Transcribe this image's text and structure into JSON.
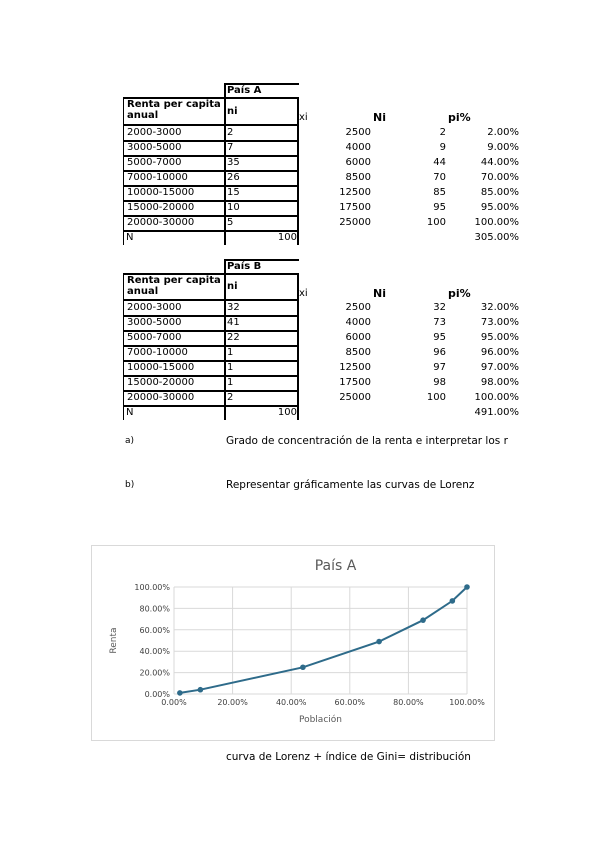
{
  "table_a": {
    "title": "País A",
    "header_col1": "Renta per capita anual",
    "header_ni": "ni",
    "header_xi": "xi",
    "header_Ni": "Ni",
    "header_pi": "pi%",
    "rows": [
      {
        "range": "2000-3000",
        "ni": "2",
        "xi": "2500",
        "Ni": "2",
        "pi": "2.00%"
      },
      {
        "range": "3000-5000",
        "ni": "7",
        "xi": "4000",
        "Ni": "9",
        "pi": "9.00%"
      },
      {
        "range": "5000-7000",
        "ni": "35",
        "xi": "6000",
        "Ni": "44",
        "pi": "44.00%"
      },
      {
        "range": "7000-10000",
        "ni": "26",
        "xi": "8500",
        "Ni": "70",
        "pi": "70.00%"
      },
      {
        "range": "10000-15000",
        "ni": "15",
        "xi": "12500",
        "Ni": "85",
        "pi": "85.00%"
      },
      {
        "range": "15000-20000",
        "ni": "10",
        "xi": "17500",
        "Ni": "95",
        "pi": "95.00%"
      },
      {
        "range": "20000-30000",
        "ni": "5",
        "xi": "25000",
        "Ni": "100",
        "pi": "100.00%"
      }
    ],
    "total_label": "N",
    "total_value": "100",
    "pi_total": "305.00%"
  },
  "table_b": {
    "title": "País B",
    "header_col1": "Renta per capita anual",
    "header_ni": "ni",
    "header_xi": "xi",
    "header_Ni": "Ni",
    "header_pi": "pi%",
    "rows": [
      {
        "range": "2000-3000",
        "ni": "32",
        "xi": "2500",
        "Ni": "32",
        "pi": "32.00%"
      },
      {
        "range": "3000-5000",
        "ni": "41",
        "xi": "4000",
        "Ni": "73",
        "pi": "73.00%"
      },
      {
        "range": "5000-7000",
        "ni": "22",
        "xi": "6000",
        "Ni": "95",
        "pi": "95.00%"
      },
      {
        "range": "7000-10000",
        "ni": "1",
        "xi": "8500",
        "Ni": "96",
        "pi": "96.00%"
      },
      {
        "range": "10000-15000",
        "ni": "1",
        "xi": "12500",
        "Ni": "97",
        "pi": "97.00%"
      },
      {
        "range": "15000-20000",
        "ni": "1",
        "xi": "17500",
        "Ni": "98",
        "pi": "98.00%"
      },
      {
        "range": "20000-30000",
        "ni": "2",
        "xi": "25000",
        "Ni": "100",
        "pi": "100.00%"
      }
    ],
    "total_label": "N",
    "total_value": "100",
    "pi_total": "491.00%"
  },
  "questions": {
    "a_label": "a)",
    "a_text": "Grado de concentración de la renta e interpretar los r",
    "b_label": "b)",
    "b_text": "Representar gráficamente las curvas de Lorenz"
  },
  "footer_note": "curva de Lorenz + índice de Gini= distribución",
  "colors": {
    "line": "#2e6b8a",
    "grid": "#d9d9d9"
  },
  "chart_data": {
    "type": "line",
    "title": "País A",
    "xlabel": "Población",
    "ylabel": "Renta",
    "xlim": [
      0,
      100
    ],
    "ylim": [
      0,
      100
    ],
    "x_ticks": [
      "0.00%",
      "20.00%",
      "40.00%",
      "60.00%",
      "80.00%",
      "100.00%"
    ],
    "y_ticks": [
      "0.00%",
      "20.00%",
      "40.00%",
      "60.00%",
      "80.00%",
      "100.00%"
    ],
    "grid": true,
    "series": [
      {
        "x": [
          2,
          9,
          44,
          70,
          85,
          95,
          100
        ],
        "y": [
          1,
          4,
          25,
          49,
          69,
          87,
          100
        ]
      }
    ]
  }
}
